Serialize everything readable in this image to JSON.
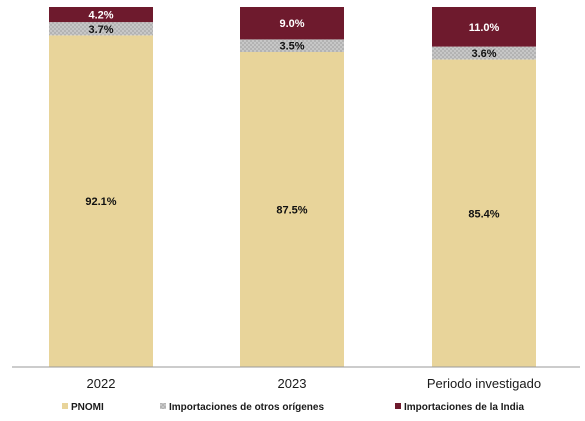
{
  "chart_data": {
    "type": "bar",
    "stacked": true,
    "categories": [
      "2022",
      "2023",
      "Periodo investigado"
    ],
    "series": [
      {
        "name": "PNOMI",
        "values": [
          92.1,
          87.5,
          85.4
        ],
        "labels": [
          "92.1%",
          "87.5%",
          "85.4%"
        ],
        "color": "#e8d49a",
        "pattern": "solid"
      },
      {
        "name": "Importaciones de otros orígenes",
        "values": [
          3.7,
          3.5,
          3.6
        ],
        "labels": [
          "3.7%",
          "3.5%",
          "3.6%"
        ],
        "color": "#b8b8b8",
        "pattern": "dotted"
      },
      {
        "name": "Importaciones de la India",
        "values": [
          4.2,
          9.0,
          11.0
        ],
        "labels": [
          "4.2%",
          "9.0%",
          "11.0%"
        ],
        "color": "#6e1a2d",
        "pattern": "solid"
      }
    ],
    "ylim": [
      0,
      100
    ],
    "grid": false,
    "legend_position": "bottom",
    "title": "",
    "xlabel": "",
    "ylabel": ""
  }
}
